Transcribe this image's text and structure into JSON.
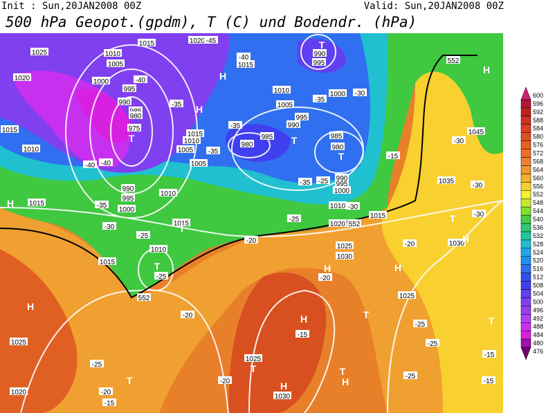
{
  "header": {
    "init": "Init : Sun,20JAN2008 00Z",
    "valid": "Valid: Sun,20JAN2008 00Z",
    "title": "500 hPa Geopot.(gpdm), T (C) und Bodendr. (hPa)"
  },
  "colorbar": {
    "levels": [
      476,
      480,
      484,
      488,
      492,
      496,
      500,
      504,
      508,
      512,
      516,
      520,
      524,
      528,
      532,
      536,
      540,
      544,
      548,
      552,
      556,
      560,
      564,
      568,
      572,
      576,
      580,
      584,
      588,
      592,
      596,
      600
    ],
    "colors": [
      "#700070",
      "#a010b0",
      "#d820e0",
      "#c830f0",
      "#b040f0",
      "#9840f0",
      "#8040f0",
      "#6040f0",
      "#4040f0",
      "#3050f0",
      "#3070f0",
      "#2090f0",
      "#20a8e8",
      "#20c0d0",
      "#20c8a0",
      "#30c870",
      "#40d040",
      "#80e030",
      "#c8e830",
      "#f8f030",
      "#f8d030",
      "#f0b030",
      "#f09830",
      "#f08030",
      "#f07020",
      "#e86020",
      "#e05020",
      "#e04020",
      "#d03020",
      "#c02020",
      "#b01838",
      "#d0207a"
    ]
  },
  "labels": {
    "isobars": [
      "1025",
      "1020",
      "1015",
      "1010",
      "1010",
      "1005",
      "1000",
      "995",
      "990",
      "985",
      "980",
      "975",
      "1015",
      "1020",
      "1015",
      "1010",
      "1005",
      "1000",
      "995",
      "990",
      "985",
      "980",
      "985",
      "980",
      "990",
      "995",
      "1015",
      "1010",
      "1005",
      "1005",
      "1010",
      "990",
      "995",
      "1000",
      "1015",
      "1015",
      "1010",
      "1015",
      "1025",
      "1030",
      "1020",
      "1010",
      "1000",
      "995",
      "990",
      "1015",
      "1035",
      "1045",
      "1025",
      "1020",
      "1025",
      "1030",
      "1025",
      "1030",
      "552",
      "552",
      "552"
    ],
    "centers": [
      "T",
      "H",
      "H",
      "T",
      "T",
      "T",
      "H",
      "H",
      "T",
      "T",
      "H",
      "T",
      "H",
      "T",
      "H",
      "T",
      "H",
      "T",
      "H",
      "T",
      "H",
      "T",
      "H"
    ],
    "temperatures": [
      "-45",
      "-40",
      "-40",
      "-35",
      "-35",
      "-35",
      "-40",
      "-40",
      "-35",
      "-30",
      "-25",
      "-25",
      "-30",
      "-35",
      "-25",
      "-30",
      "-25",
      "-20",
      "-20",
      "-20",
      "-20",
      "-15",
      "-25",
      "-20",
      "-15",
      "-25",
      "-25",
      "-25",
      "-15",
      "-15",
      "-30",
      "-30",
      "-30",
      "-15",
      "-20",
      "-35"
    ]
  }
}
